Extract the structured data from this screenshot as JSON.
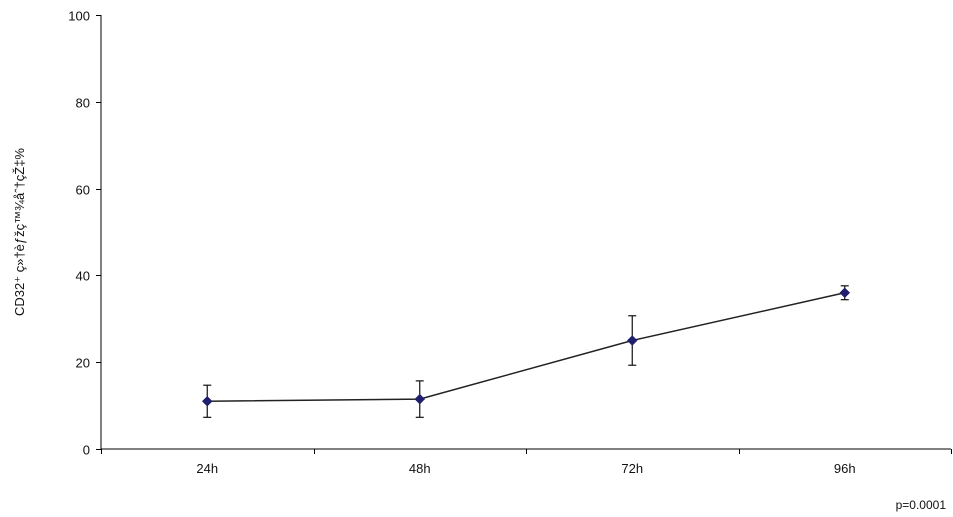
{
  "chart_data": {
    "type": "line",
    "title": "",
    "xlabel": "",
    "ylabel": "CD32⁺ ç»†èƒžç™¾åˆ†çŽ‡%",
    "ylim": [
      0,
      100
    ],
    "y_ticks": [
      0,
      20,
      40,
      60,
      80,
      100
    ],
    "categories": [
      "24h",
      "48h",
      "72h",
      "96h"
    ],
    "series": [
      {
        "values": [
          11,
          11.5,
          25,
          36
        ],
        "error": [
          3.7,
          4.2,
          5.7,
          1.6
        ],
        "color": "#1f1f6e"
      }
    ],
    "grid": false,
    "legend": "none",
    "annotation": "p=0.0001"
  }
}
